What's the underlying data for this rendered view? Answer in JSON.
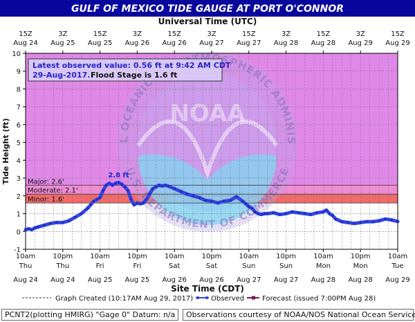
{
  "header": {
    "title": "GULF OF MEXICO TIDE GAUGE AT PORT O'CONNOR",
    "top_axis_title": "Universal Time (UTC)"
  },
  "annotation": {
    "line1": "Latest observed value: 0.56 ft at 9:42 AM CDT",
    "line2_date": "29-Aug-2017.",
    "line2_flood": "Flood Stage is 1.6 ft",
    "peak_label": "2.8 ft"
  },
  "legend": {
    "created": "Graph Created (10:17AM Aug 29, 2017)",
    "observed": "Observed",
    "forecast": "Forecast (issued 7:00PM Aug 28)"
  },
  "footer": {
    "left": "PCNT2(plotting HMIRG) \"Gage 0\" Datum: n/a",
    "right": "Observations courtesy of NOAA/NOS National Ocean Service"
  },
  "watermark": {
    "center": "NOAA",
    "ring_top": "NATIONAL OCEANIC AND ATMOSPHERIC ADMINISTRATION",
    "ring_bottom": "U.S. DEPARTMENT OF COMMERCE"
  },
  "colors": {
    "title_bar": "#08069d",
    "plot_bg": "#e088e8",
    "major": "#ee8cd4",
    "moderate": "#f26a6a",
    "minor": "#f6c57a",
    "observed_line": "#3344dd",
    "grid": "#777777",
    "annotation_text": "#2424c8"
  },
  "chart_data": {
    "type": "line",
    "title": "GULF OF MEXICO TIDE GAUGE AT PORT O'CONNOR",
    "xlabel": "Site Time (CDT)",
    "ylabel": "Tide Height (ft)",
    "top_xlabel": "Universal Time (UTC)",
    "ylim": [
      -1,
      10
    ],
    "yticks": [
      -1,
      0,
      1,
      2,
      3,
      4,
      5,
      6,
      7,
      8,
      9,
      10
    ],
    "x_unit": "hours after 10am Aug 24 CDT",
    "xlim": [
      0,
      120
    ],
    "bottom_ticks": [
      {
        "x": 0,
        "time": "10am",
        "day": "Thu",
        "date": "Aug 24"
      },
      {
        "x": 12,
        "time": "10pm",
        "day": "Thu",
        "date": "Aug 24"
      },
      {
        "x": 24,
        "time": "10am",
        "day": "Fri",
        "date": "Aug 25"
      },
      {
        "x": 36,
        "time": "10pm",
        "day": "Fri",
        "date": "Aug 25"
      },
      {
        "x": 48,
        "time": "10am",
        "day": "Sat",
        "date": "Aug 26"
      },
      {
        "x": 60,
        "time": "10pm",
        "day": "Sat",
        "date": "Aug 26"
      },
      {
        "x": 72,
        "time": "10am",
        "day": "Sun",
        "date": "Aug 27"
      },
      {
        "x": 84,
        "time": "10pm",
        "day": "Sun",
        "date": "Aug 27"
      },
      {
        "x": 96,
        "time": "10am",
        "day": "Mon",
        "date": "Aug 28"
      },
      {
        "x": 108,
        "time": "10pm",
        "day": "Mon",
        "date": "Aug 28"
      },
      {
        "x": 120,
        "time": "10am",
        "day": "Tue",
        "date": "Aug 29"
      }
    ],
    "top_ticks": [
      {
        "x": 0,
        "time": "15Z",
        "date": "Aug 24"
      },
      {
        "x": 12,
        "time": "3Z",
        "date": "Aug 25"
      },
      {
        "x": 24,
        "time": "15Z",
        "date": "Aug 25"
      },
      {
        "x": 36,
        "time": "3Z",
        "date": "Aug 26"
      },
      {
        "x": 48,
        "time": "15Z",
        "date": "Aug 26"
      },
      {
        "x": 60,
        "time": "3Z",
        "date": "Aug 27"
      },
      {
        "x": 72,
        "time": "15Z",
        "date": "Aug 27"
      },
      {
        "x": 84,
        "time": "3Z",
        "date": "Aug 28"
      },
      {
        "x": 96,
        "time": "15Z",
        "date": "Aug 28"
      },
      {
        "x": 108,
        "time": "3Z",
        "date": "Aug 29"
      },
      {
        "x": 120,
        "time": "15Z",
        "date": "Aug 29"
      }
    ],
    "flood_categories": [
      {
        "name": "Major",
        "label": "Major: 2.6'",
        "value": 2.6
      },
      {
        "name": "Moderate",
        "label": "Moderate: 2.1'",
        "value": 2.1
      },
      {
        "name": "Minor",
        "label": "Minor: 1.6'",
        "value": 1.6
      }
    ],
    "series": [
      {
        "name": "Observed",
        "x": [
          0,
          1,
          2,
          3,
          4,
          6,
          8,
          10,
          12,
          14,
          16,
          18,
          20,
          21,
          22,
          23,
          24,
          25,
          26,
          27,
          28,
          29,
          30,
          31,
          32,
          33,
          34,
          35,
          36,
          37,
          38,
          39,
          40,
          41,
          42,
          43,
          44,
          45,
          46,
          48,
          50,
          52,
          54,
          56,
          58,
          60,
          62,
          64,
          66,
          68,
          70,
          71,
          72,
          73,
          74,
          75,
          76,
          77,
          78,
          80,
          82,
          84,
          86,
          88,
          90,
          92,
          94,
          96,
          97,
          98,
          99,
          100,
          102,
          104,
          106,
          108,
          110,
          112,
          114,
          116,
          118,
          120
        ],
        "y": [
          0.1,
          0.15,
          0.1,
          0.2,
          0.25,
          0.35,
          0.45,
          0.5,
          0.5,
          0.6,
          0.8,
          1.0,
          1.3,
          1.5,
          1.7,
          1.8,
          1.9,
          2.3,
          2.6,
          2.7,
          2.6,
          2.7,
          2.75,
          2.65,
          2.5,
          2.3,
          1.8,
          1.5,
          1.6,
          1.55,
          1.6,
          1.8,
          2.1,
          2.4,
          2.5,
          2.6,
          2.55,
          2.6,
          2.55,
          2.4,
          2.25,
          2.1,
          2.0,
          1.9,
          1.75,
          1.7,
          1.6,
          1.7,
          1.75,
          1.95,
          1.7,
          1.55,
          1.4,
          1.3,
          1.1,
          1.0,
          0.95,
          1.0,
          1.0,
          1.05,
          0.95,
          1.0,
          1.1,
          1.05,
          1.0,
          0.95,
          1.05,
          1.1,
          1.2,
          1.0,
          0.9,
          0.7,
          0.55,
          0.5,
          0.45,
          0.5,
          0.55,
          0.55,
          0.6,
          0.7,
          0.65,
          0.56
        ]
      },
      {
        "name": "Forecast (issued 7:00PM Aug 28)",
        "x": [],
        "y": []
      }
    ],
    "latest_observed": 0.56,
    "flood_stage": 1.6,
    "peak_label_value": 2.8,
    "grid": true,
    "legend_position": "bottom"
  }
}
